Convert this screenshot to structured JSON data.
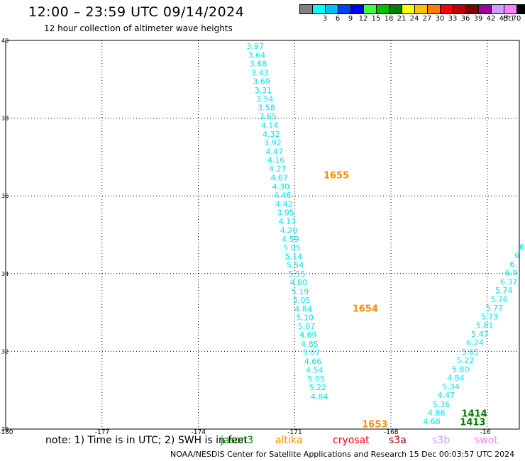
{
  "header": {
    "title": "12:00 – 23:59 UTC 09/14/2024",
    "subtitle": "12 hour collection of altimeter wave heights"
  },
  "legend": {
    "unit": "(ft)",
    "bins": [
      {
        "label": "",
        "color": "#808080"
      },
      {
        "label": "3",
        "color": "#00ffff"
      },
      {
        "label": "6",
        "color": "#00bfff"
      },
      {
        "label": "9",
        "color": "#0040ff"
      },
      {
        "label": "12",
        "color": "#0000ff"
      },
      {
        "label": "15",
        "color": "#40ff40"
      },
      {
        "label": "18",
        "color": "#00c000"
      },
      {
        "label": "21",
        "color": "#008000"
      },
      {
        "label": "24",
        "color": "#ffff00"
      },
      {
        "label": "27",
        "color": "#ffc000"
      },
      {
        "label": "30",
        "color": "#ff8000"
      },
      {
        "label": "33",
        "color": "#ff0000"
      },
      {
        "label": "36",
        "color": "#c00000"
      },
      {
        "label": "39",
        "color": "#800000"
      },
      {
        "label": "42",
        "color": "#a000a0"
      },
      {
        "label": "45",
        "color": "#c8a0ff"
      },
      {
        "label": "70",
        "color": "#ff80ff"
      },
      {
        "label": "",
        "color": "#000000"
      }
    ]
  },
  "map": {
    "lon_range": [
      -180,
      -164
    ],
    "lat_range": [
      30,
      40
    ],
    "lon_ticks": [
      "-180",
      "-177",
      "-174",
      "-171",
      "-168",
      "-16"
    ],
    "lat_ticks": [
      "30",
      "32",
      "34",
      "36",
      "38",
      "40"
    ],
    "tracks": [
      {
        "satellite": "cyan_pass_1",
        "color": "#00e5ee",
        "points": [
          {
            "lon": -172.5,
            "lat": 39.78,
            "swh": "3.97"
          },
          {
            "lon": -172.45,
            "lat": 39.55,
            "swh": "3.64"
          },
          {
            "lon": -172.4,
            "lat": 39.33,
            "swh": "3.68"
          },
          {
            "lon": -172.35,
            "lat": 39.1,
            "swh": "3.43"
          },
          {
            "lon": -172.3,
            "lat": 38.88,
            "swh": "3.69"
          },
          {
            "lon": -172.25,
            "lat": 38.65,
            "swh": "3.31"
          },
          {
            "lon": -172.2,
            "lat": 38.42,
            "swh": "3.54"
          },
          {
            "lon": -172.15,
            "lat": 38.2,
            "swh": "3.58"
          },
          {
            "lon": -172.1,
            "lat": 37.97,
            "swh": "3.65"
          },
          {
            "lon": -172.05,
            "lat": 37.75,
            "swh": "4.14"
          },
          {
            "lon": -172.0,
            "lat": 37.52,
            "swh": "4.32"
          },
          {
            "lon": -171.95,
            "lat": 37.3,
            "swh": "3.92"
          },
          {
            "lon": -171.9,
            "lat": 37.07,
            "swh": "4.47"
          },
          {
            "lon": -171.85,
            "lat": 36.85,
            "swh": "4.16"
          },
          {
            "lon": -171.8,
            "lat": 36.62,
            "swh": "4.27"
          },
          {
            "lon": -171.75,
            "lat": 36.4,
            "swh": "4.67"
          },
          {
            "lon": -171.7,
            "lat": 36.17,
            "swh": "4.30"
          },
          {
            "lon": -171.65,
            "lat": 35.95,
            "swh": "4.46"
          },
          {
            "lon": -171.6,
            "lat": 35.72,
            "swh": "4.42"
          },
          {
            "lon": -171.55,
            "lat": 35.5,
            "swh": "3.95"
          },
          {
            "lon": -171.5,
            "lat": 35.27,
            "swh": "4.13"
          },
          {
            "lon": -171.45,
            "lat": 35.05,
            "swh": "4.20"
          },
          {
            "lon": -171.4,
            "lat": 34.82,
            "swh": "4.59"
          },
          {
            "lon": -171.35,
            "lat": 34.6,
            "swh": "5.05"
          },
          {
            "lon": -171.3,
            "lat": 34.37,
            "swh": "5.14"
          },
          {
            "lon": -171.25,
            "lat": 34.15,
            "swh": "5.54"
          },
          {
            "lon": -171.2,
            "lat": 33.92,
            "swh": "5.55"
          },
          {
            "lon": -171.15,
            "lat": 33.7,
            "swh": "4.80"
          },
          {
            "lon": -171.1,
            "lat": 33.47,
            "swh": "5.19"
          },
          {
            "lon": -171.05,
            "lat": 33.25,
            "swh": "5.05"
          },
          {
            "lon": -171.0,
            "lat": 33.02,
            "swh": "4.84"
          },
          {
            "lon": -170.95,
            "lat": 32.8,
            "swh": "5.10"
          },
          {
            "lon": -170.9,
            "lat": 32.57,
            "swh": "5.07"
          },
          {
            "lon": -170.85,
            "lat": 32.35,
            "swh": "4.69"
          },
          {
            "lon": -170.8,
            "lat": 32.12,
            "swh": "4.85"
          },
          {
            "lon": -170.75,
            "lat": 31.9,
            "swh": "5.07"
          },
          {
            "lon": -170.7,
            "lat": 31.67,
            "swh": "4.66"
          },
          {
            "lon": -170.65,
            "lat": 31.45,
            "swh": "4.54"
          },
          {
            "lon": -170.6,
            "lat": 31.22,
            "swh": "5.05"
          },
          {
            "lon": -170.55,
            "lat": 31.0,
            "swh": "5.22"
          },
          {
            "lon": -170.5,
            "lat": 30.77,
            "swh": "4.84"
          }
        ]
      },
      {
        "satellite": "cyan_pass_2",
        "color": "#00e5ee",
        "points": [
          {
            "lon": -167.0,
            "lat": 30.13,
            "swh": "4.68"
          },
          {
            "lon": -166.85,
            "lat": 30.35,
            "swh": "4.86"
          },
          {
            "lon": -166.7,
            "lat": 30.57,
            "swh": "5.36"
          },
          {
            "lon": -166.55,
            "lat": 30.8,
            "swh": "4.47"
          },
          {
            "lon": -166.4,
            "lat": 31.02,
            "swh": "5.34"
          },
          {
            "lon": -166.25,
            "lat": 31.25,
            "swh": "4.84"
          },
          {
            "lon": -166.1,
            "lat": 31.47,
            "swh": "5.80"
          },
          {
            "lon": -165.95,
            "lat": 31.7,
            "swh": "5.22"
          },
          {
            "lon": -165.8,
            "lat": 31.92,
            "swh": "5.65"
          },
          {
            "lon": -165.65,
            "lat": 32.15,
            "swh": "6.24"
          },
          {
            "lon": -165.5,
            "lat": 32.37,
            "swh": "5.47"
          },
          {
            "lon": -165.35,
            "lat": 32.6,
            "swh": "5.81"
          },
          {
            "lon": -165.2,
            "lat": 32.82,
            "swh": "5.73"
          },
          {
            "lon": -165.05,
            "lat": 33.05,
            "swh": "5.77"
          },
          {
            "lon": -164.9,
            "lat": 33.27,
            "swh": "5.76"
          },
          {
            "lon": -164.75,
            "lat": 33.5,
            "swh": "5.74"
          },
          {
            "lon": -164.6,
            "lat": 33.72,
            "swh": "6.37"
          },
          {
            "lon": -164.45,
            "lat": 33.95,
            "swh": "6.9"
          },
          {
            "lon": -164.3,
            "lat": 34.17,
            "swh": "6."
          },
          {
            "lon": -164.15,
            "lat": 34.4,
            "swh": "6"
          },
          {
            "lon": -164.0,
            "lat": 34.62,
            "swh": "6"
          }
        ]
      }
    ],
    "time_labels": [
      {
        "text": "1655",
        "lon": -170.1,
        "lat": 36.45,
        "color": "#ff8c00"
      },
      {
        "text": "1654",
        "lon": -169.2,
        "lat": 33.02,
        "color": "#ff8c00"
      },
      {
        "text": "1653",
        "lon": -168.9,
        "lat": 30.05,
        "color": "#ff8c00"
      },
      {
        "text": "1414",
        "lon": -165.8,
        "lat": 30.32,
        "color": "#008000"
      },
      {
        "text": "1413",
        "lon": -165.85,
        "lat": 30.1,
        "color": "#008000"
      }
    ]
  },
  "note": {
    "text": "note: 1) Time is in UTC; 2) SWH is in feet"
  },
  "satellites": [
    {
      "name": "jason3",
      "color": "#008000"
    },
    {
      "name": "altika",
      "color": "#ff8c00"
    },
    {
      "name": "cryosat",
      "color": "#ff0000"
    },
    {
      "name": "s3a",
      "color": "#a00000"
    },
    {
      "name": "s3b",
      "color": "#c8a0ff"
    },
    {
      "name": "swot",
      "color": "#ff80ff"
    }
  ],
  "footer": {
    "text": "NOAA/NESDIS Center for Satellite Applications and Research    15 Dec 00:03:57 UTC 2024"
  }
}
